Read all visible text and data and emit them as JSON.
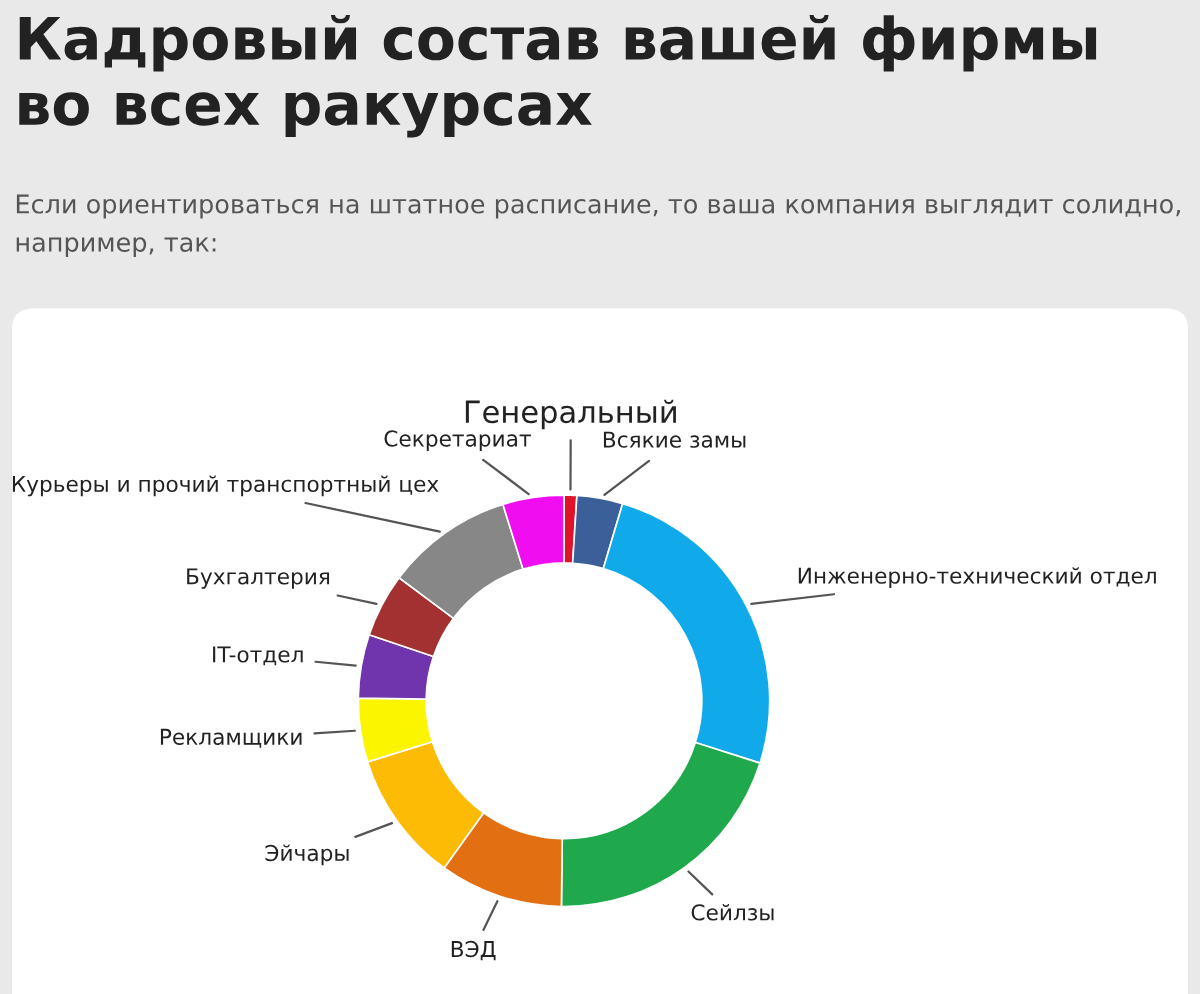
{
  "chart_data": {
    "type": "donut",
    "title": "Кадровый состав вашей фирмы во всех ракурсах",
    "subtitle": "Если ориентироваться на штатное расписание, то ваша компания выглядит солидно, например, так:",
    "categories": [
      "Генеральный",
      "Всякие замы",
      "Инженерно-технический отдел",
      "Сейлзы",
      "ВЭД",
      "Эйчары",
      "Рекламщики",
      "IT-отдел",
      "Бухгалтерия",
      "Курьеры и прочий транспортный цех",
      "Секретариат"
    ],
    "values": [
      1,
      3.6,
      25.3,
      20.3,
      9.7,
      10.3,
      5,
      5,
      5,
      10,
      4.8
    ],
    "colors": [
      "#e0132b",
      "#3a5f99",
      "#10aaea",
      "#20a94c",
      "#e36f13",
      "#fdbb06",
      "#fbf600",
      "#7034ad",
      "#a33131",
      "#878787",
      "#f00ef0"
    ],
    "legend": false
  }
}
